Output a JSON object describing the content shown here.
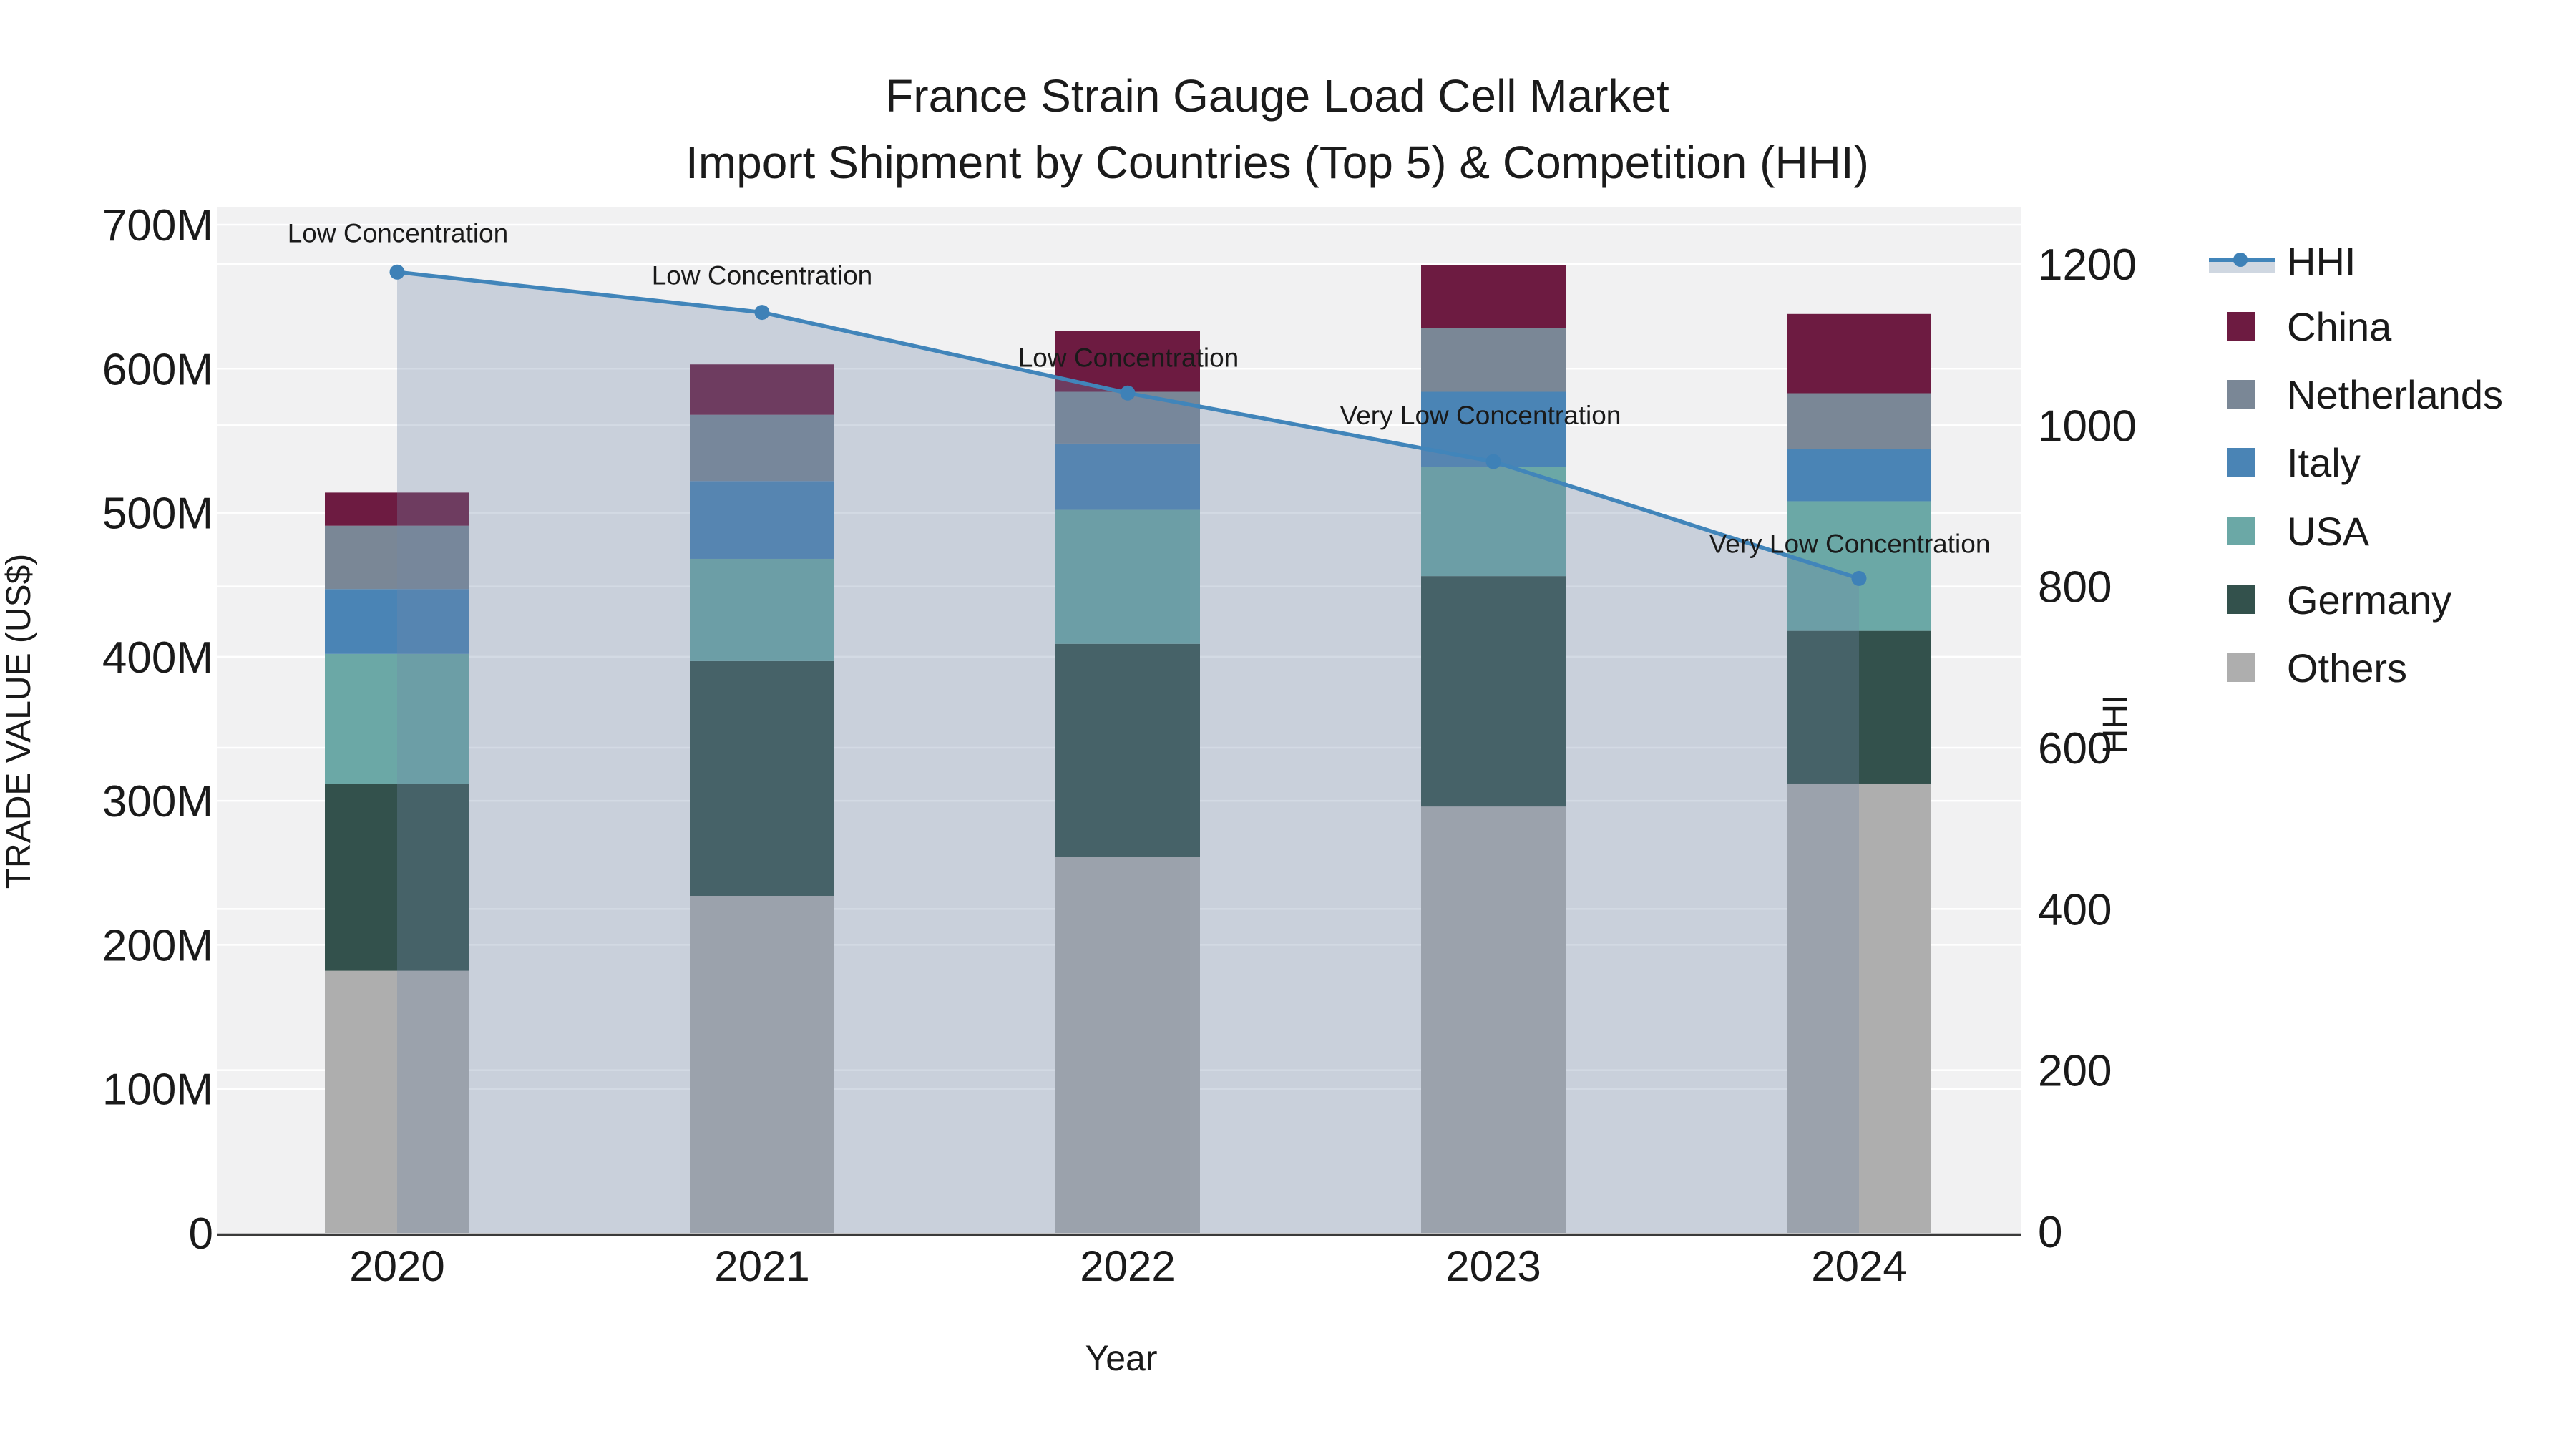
{
  "title": {
    "line1": "France Strain Gauge Load Cell Market",
    "line2": "Import Shipment by Countries (Top 5) & Competition (HHI)"
  },
  "chart_data": {
    "type": "bar",
    "subtype": "stacked-bars-with-line-overlay",
    "categories": [
      "2020",
      "2021",
      "2022",
      "2023",
      "2024"
    ],
    "series": [
      {
        "name": "China",
        "color": "#6D1B41",
        "values": [
          23,
          35,
          42,
          44,
          55
        ]
      },
      {
        "name": "Netherlands",
        "color": "#7A8796",
        "values": [
          44,
          46,
          36,
          44,
          39
        ]
      },
      {
        "name": "Italy",
        "color": "#4A84B5",
        "values": [
          45,
          54,
          46,
          52,
          36
        ]
      },
      {
        "name": "USA",
        "color": "#6BA8A6",
        "values": [
          90,
          71,
          93,
          76,
          90
        ]
      },
      {
        "name": "Germany",
        "color": "#33514C",
        "values": [
          130,
          163,
          148,
          160,
          106
        ]
      },
      {
        "name": "Others",
        "color": "#AEAEAE",
        "values": [
          182,
          234,
          261,
          296,
          312
        ]
      }
    ],
    "stack_order_bottom_to_top": [
      "Others",
      "Germany",
      "USA",
      "Italy",
      "Netherlands",
      "China"
    ],
    "bar_totals": [
      514,
      603,
      626,
      672,
      638
    ],
    "line_series": {
      "name": "HHI",
      "values": [
        1190,
        1140,
        1040,
        955,
        810
      ],
      "color": "#4185BA",
      "marker_color": "#3E81B7",
      "area_fill_color": "#7288A7",
      "area_fill_alpha": 0.31,
      "legend_band_color": "#CFD7E1"
    },
    "annotations": [
      {
        "category": "2020",
        "text": "Low Concentration"
      },
      {
        "category": "2021",
        "text": "Low Concentration"
      },
      {
        "category": "2022",
        "text": "Low Concentration"
      },
      {
        "category": "2023",
        "text": "Very Low Concentration"
      },
      {
        "category": "2024",
        "text": "Very Low Concentration"
      }
    ],
    "left_axis": {
      "title": "TRADE VALUE (US$)",
      "tick_labels": [
        "0",
        "100M",
        "200M",
        "300M",
        "400M",
        "500M",
        "600M",
        "700M"
      ],
      "tick_values": [
        0,
        100,
        200,
        300,
        400,
        500,
        600,
        700
      ],
      "range": [
        0,
        712
      ]
    },
    "right_axis": {
      "title": "HHI",
      "tick_labels": [
        "0",
        "200",
        "400",
        "600",
        "800",
        "1000",
        "1200"
      ],
      "tick_values": [
        0,
        200,
        400,
        600,
        800,
        1000,
        1200
      ],
      "range": [
        0,
        1275
      ]
    },
    "x_axis": {
      "title": "Year"
    },
    "legend_order": [
      "HHI",
      "China",
      "Netherlands",
      "Italy",
      "USA",
      "Germany",
      "Others"
    ],
    "grid": true,
    "legend_position": "right",
    "plot_bg_color": "#F1F1F2",
    "grid_color": "#FFFFFF",
    "axis_line_color": "#3A3A3A",
    "text_color": "#1a1a1a"
  }
}
